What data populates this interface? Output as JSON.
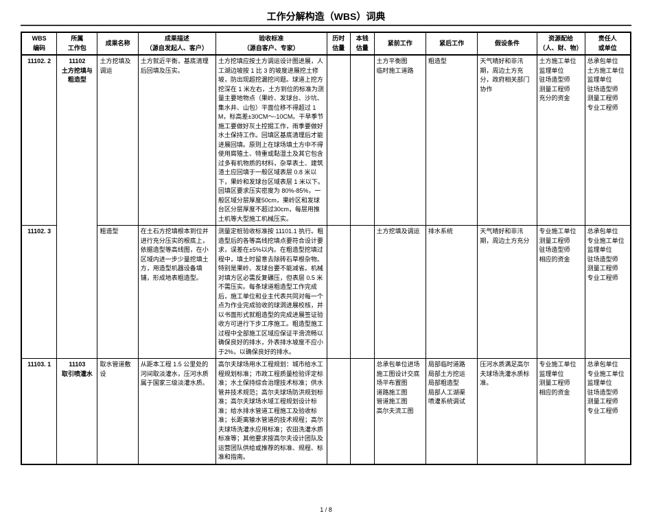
{
  "title": "工作分解构造（WBS）词典",
  "columns": {
    "code": {
      "h1": "WBS",
      "h2": "编码"
    },
    "pkg": {
      "h1": "所属",
      "h2": "工作包"
    },
    "name": {
      "h1": "成果名称",
      "h2": ""
    },
    "desc": {
      "h1": "成果描述",
      "h2": "（源自发起人、客户）"
    },
    "accept": {
      "h1": "验收标准",
      "h2": "（源自客户、专家）"
    },
    "hrs": {
      "h1": "历时",
      "h2": "估量"
    },
    "cost": {
      "h1": "本钱",
      "h2": "估量"
    },
    "pre": {
      "h1": "紧前工作",
      "h2": ""
    },
    "post": {
      "h1": "紧后工作",
      "h2": ""
    },
    "cond": {
      "h1": "假设条件",
      "h2": ""
    },
    "res": {
      "h1": "资源配给",
      "h2": "（人、财、物）"
    },
    "resp": {
      "h1": "责任人",
      "h2": "或单位"
    }
  },
  "rows": [
    {
      "code": "11102. 2",
      "pkg": "11102\n土方挖填与粗造型",
      "name": "土方挖填及调运",
      "desc": "土方就近平衡，基底清理后回填及压实。",
      "accept": "土方挖填应按土方调运设计图进展，人工湖边坡按 1 比 3 的坡度进展挖土修坡，防出现超挖漏挖问题。球道上挖方挖深在 1 米左右，土方到位的标准为测量主要地物点（果岭、发球台、沙坑、集水井、山包）平面位移不得超过 1M，标高差±30CM～-10CM。干旱季节施工要做好灰土控掘工作，雨季要做好水土保持工作。回填区基底清理后才能进展回填。原则上在球场填土方中不得使用腐殖土、特重或黏湿土及其它包含过多有机物质的材料，杂草表土、建筑渣土应回填于一般区域表层 0.8 米以下，果岭和发球台区域表层 1 米以下。回填区要求压实密度为 80%-85%，一般区域分层厚度50cm，果岭区和发球台区分层厚度不超过30cm，每层用推土机等大型施工机械压实。",
      "pre": "土方平衡图\n临时施工道路",
      "post": "粗造型",
      "cond": "天气晴好和非汛期，周边土方充分，政府相关部门协作",
      "res": "土方施工单位\n监理单位\n驻场造型师\n测量工程师\n充分的资金",
      "resp": "总承包单位\n土方施工单位\n监理单位\n驻场造型师\n测量工程师\n专业工程师"
    },
    {
      "code": "11102. 3",
      "pkg": "",
      "name": "粗造型",
      "desc": "在土石方挖填根本到位并进行充分压实的根底上，依据造型等高线图，在小区域内进一步少量挖填土方，用造型机器设备填铺，形成地表粗造型。",
      "accept": "测量定桩验收标准按 11101.1 执行。粗造型后的各等高线挖填点要符合设计要求，误差在±5%以内。在粗造型挖填过程中，填土时留意去除砖石草根杂物。特别是果岭、发球台要不能减省。机械对填方区必需反复碾压，但表层 0.5 米不需压实。每条球道粗造型工作完成后，施工单位和业主代表共同对每一个点为作业完成验收的球洞进展校核，并以书面形式就粗造型的完成进展签证验收方可进行下步工序施工。粗造型施工过程中全部施工区域应保证平滑流畅以确保良好的排水，外表排水坡度不应小于2%，以确保良好的排水。",
      "pre": "土方挖填及调运",
      "post": "排水系统",
      "cond": "天气晴好和非汛期，周边土方充分",
      "res": "专业施工单位\n测量工程师\n驻场造型师\n相应的资金",
      "resp": "总承包单位\n专业施工单位\n监理单位\n驻场造型师\n测量工程师\n专业工程师"
    },
    {
      "code": "11103. 1",
      "pkg": "11103\n取引喷灌水",
      "name": "取水管道敷设",
      "desc": "从距本工程 1.5 公里处的河间取淡灌水，压河水质属于国家三级淡灌水质。",
      "accept": "高尔夫球场用水工程规划：城市给水工程规划标准；市政工程质量检验评定标准；水土保持综合治理技术标准；供水管井技术规范；高尔夫球场防洪规划标准；高尔夫球场水域工程规划设计标准；给水排水管道工程施工及验收标准；长距离输水管道的技术规程；高尔夫球场洗灌水应用标准；农田洗灌水质标准等；其他要求按高尔夫设计团队及运营团队供给或推荐的标准、规程、标准和指南。",
      "pre": "总承包单位进场\n施工图设计交底\n场平布置图\n道路施工图\n管道施工图\n高尔夫流工图",
      "post": "局部临时道路\n局部土方挖运\n局部粗造型\n局部人工湖渠\n喷灌系统调试",
      "cond": "压河水质满足高尔夫球场洗灌水质标准。",
      "res": "专业施工单位\n监理单位\n测量工程师\n相应的资金",
      "resp": "总承包单位\n专业施工单位\n监理单位\n驻场造型师\n测量工程师\n专业工程师"
    }
  ],
  "footer": "1 / 8"
}
